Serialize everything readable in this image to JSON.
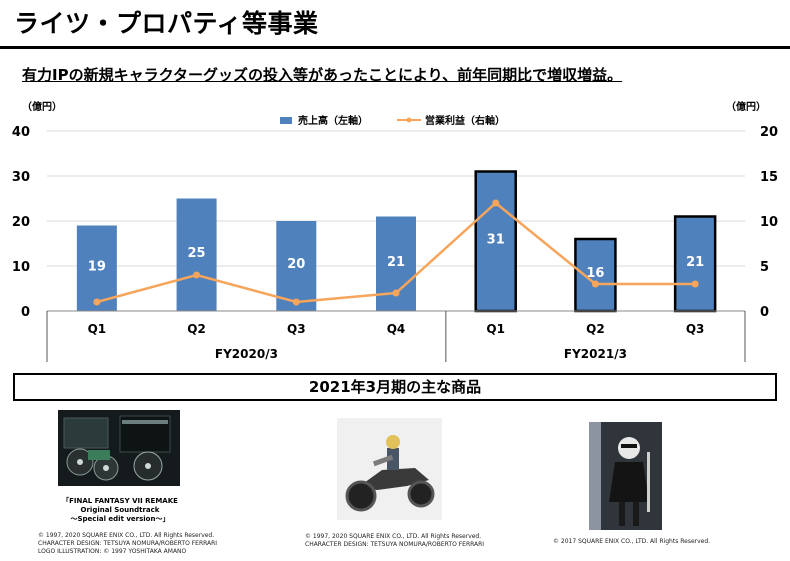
{
  "header": {
    "title": "ライツ・プロパティ等事業",
    "subtitle": "有力IPの新規キャラクターグッズの投入等があったことにより、前年同期比で増収増益。"
  },
  "chart_data": {
    "type": "bar+line",
    "left_unit": "（億円）",
    "right_unit": "（億円）",
    "left_ticks": [
      "0",
      "10",
      "20",
      "30",
      "40"
    ],
    "right_ticks": [
      "0",
      "5",
      "10",
      "15",
      "20"
    ],
    "left_ylim": [
      0,
      40
    ],
    "right_ylim": [
      0,
      20
    ],
    "categories": [
      "Q1",
      "Q2",
      "Q3",
      "Q4",
      "Q1",
      "Q2",
      "Q3"
    ],
    "groups": [
      {
        "label": "FY2020/3",
        "count": 4
      },
      {
        "label": "FY2021/3",
        "count": 3
      }
    ],
    "series": [
      {
        "name": "売上高（左軸）",
        "kind": "bar",
        "axis": "left",
        "values": [
          19,
          25,
          20,
          21,
          31,
          16,
          21
        ],
        "labels": [
          "19",
          "25",
          "20",
          "21",
          "31",
          "16",
          "21"
        ],
        "color": "#4f81bd"
      },
      {
        "name": "営業利益（右軸）",
        "kind": "line",
        "axis": "right",
        "values": [
          1,
          4,
          1,
          2,
          12,
          3,
          3
        ],
        "color": "#f6a55b"
      }
    ],
    "highlight_from_index": 4,
    "grid": true,
    "legend": "top-center"
  },
  "section": {
    "title": "2021年3月期の主な商品"
  },
  "products": [
    {
      "caption": [
        "「FINAL FANTASY VII REMAKE",
        "Original Soundtrack",
        "～Special edit version～」"
      ],
      "copyright": [
        "© 1997, 2020 SQUARE ENIX CO., LTD. All Rights Reserved.",
        "CHARACTER DESIGN: TETSUYA NOMURA/ROBERTO FERRARI",
        "LOGO ILLUSTRATION: © 1997 YOSHITAKA AMANO"
      ]
    },
    {
      "caption": [],
      "copyright": [
        "© 1997, 2020 SQUARE ENIX CO., LTD. All Rights Reserved.",
        "CHARACTER DESIGN: TETSUYA NOMURA/ROBERTO FERRARI"
      ]
    },
    {
      "caption": [],
      "copyright": [
        "© 2017 SQUARE ENIX CO., LTD. All Rights Reserved."
      ]
    }
  ]
}
